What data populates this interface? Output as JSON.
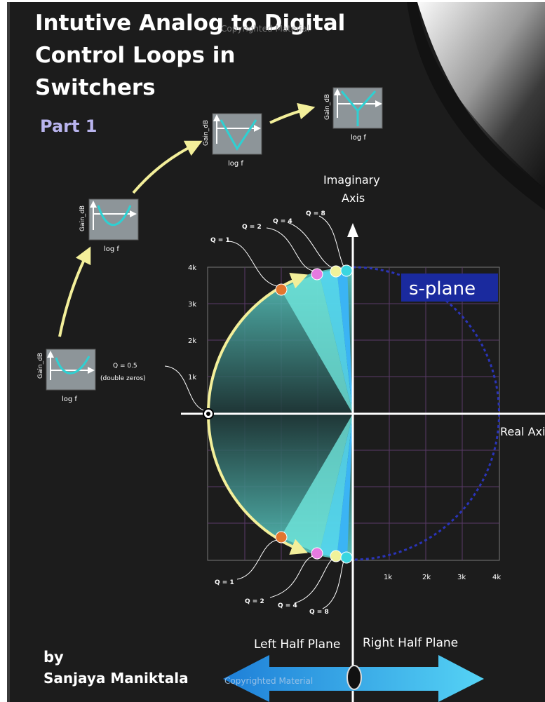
{
  "title_lines": [
    "Intutive Analog to Digital",
    "Control Loops in",
    "Switchers"
  ],
  "part": "Part 1",
  "watermark": "Copyrighted Material",
  "author": {
    "by": "by",
    "name": "Sanjaya Maniktala"
  },
  "plot": {
    "plane_label": "s-plane",
    "imag_axis": [
      "Imaginary",
      "Axis"
    ],
    "real_axis": "Real Axis",
    "y_ticks": [
      "4k",
      "3k",
      "2k",
      "1k"
    ],
    "x_ticks": [
      "1k",
      "2k",
      "3k",
      "4k"
    ],
    "q_half": [
      "Q = 0.5",
      "(double zeros)"
    ],
    "q_upper": [
      "Q = 1",
      "Q = 2",
      "Q = 4",
      "Q = 8"
    ],
    "q_lower": [
      "Q = 1",
      "Q = 2",
      "Q = 4",
      "Q = 8"
    ]
  },
  "bode": {
    "gain": "Gain_dB",
    "freq": "log f"
  },
  "planes": {
    "left": "Left Half Plane",
    "right": "Right Half Plane"
  },
  "colors": {
    "background": "#1c1c1c",
    "accent_yellow": "#f3ef9a",
    "cyan": "#3ad6e0",
    "s_plane_box": "#1a2a9e",
    "dashed_circle": "#2a34b8"
  }
}
